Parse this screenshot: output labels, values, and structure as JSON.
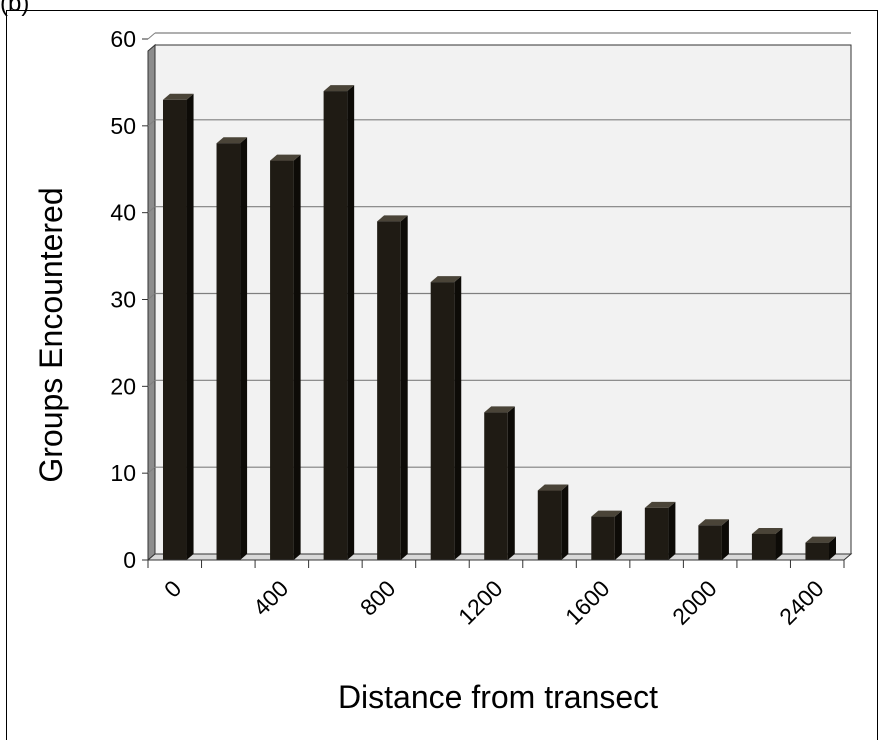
{
  "panel_label": "(b)",
  "chart_data": {
    "type": "bar",
    "style": "3d-columns",
    "xlabel": "Distance from transect",
    "ylabel": "Groups Encountered",
    "ylim": [
      0,
      60
    ],
    "y_ticks": [
      0,
      10,
      20,
      30,
      40,
      50,
      60
    ],
    "x_tick_labels": [
      "0",
      "400",
      "800",
      "1200",
      "1600",
      "2000",
      "2400"
    ],
    "categories": [
      "0",
      "200",
      "400",
      "600",
      "800",
      "1000",
      "1200",
      "1400",
      "1600",
      "1800",
      "2000",
      "2200",
      "2400"
    ],
    "values": [
      53,
      48,
      46,
      54,
      39,
      32,
      17,
      8,
      5,
      6,
      4,
      3,
      2
    ],
    "grid": true,
    "colors": {
      "bar": "#1f1b14",
      "bar_top": "#4a4438",
      "bar_side": "#0d0b07",
      "wall": "#f2f2f2",
      "grid": "#7f7f7f"
    }
  }
}
